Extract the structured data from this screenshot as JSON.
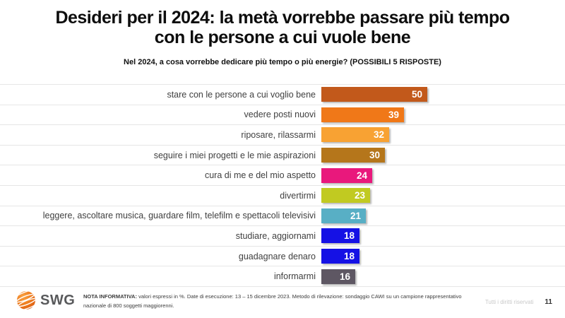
{
  "header": {
    "title_line1": "Desideri per il 2024: la metà vorrebbe passare più tempo",
    "title_line2": "con le persone a cui vuole bene",
    "subtitle": "Nel 2024, a cosa vorrebbe dedicare più tempo o più energie? (POSSIBILI 5 RISPOSTE)"
  },
  "chart_data": {
    "type": "bar",
    "orientation": "horizontal",
    "title": "Nel 2024, a cosa vorrebbe dedicare più tempo o più energie? (POSSIBILI 5 RISPOSTE)",
    "unit": "%",
    "xlim": [
      0,
      50
    ],
    "grid": "row-separator-lines",
    "value_labels": "inside-bar-end",
    "categories": [
      "stare con le persone a cui voglio bene",
      "vedere posti nuovi",
      "riposare, rilassarmi",
      "seguire i miei progetti e le mie aspirazioni",
      "cura di me e del mio aspetto",
      "divertirmi",
      "leggere, ascoltare musica, guardare film, telefilm e spettacoli televisivi",
      "studiare, aggiornami",
      "guadagnare denaro",
      "informarmi"
    ],
    "values": [
      50,
      39,
      32,
      30,
      24,
      23,
      21,
      18,
      18,
      16
    ],
    "bar_colors": [
      "#C2591B",
      "#F07818",
      "#F8A233",
      "#B5761B",
      "#E9187C",
      "#C1CA21",
      "#58AFC5",
      "#1511E5",
      "#1511E5",
      "#5E5763"
    ]
  },
  "footer": {
    "logo_text": "SWG",
    "note_label": "NOTA INFORMATIVA:",
    "note_text": "valori espressi in %. Date di esecuzione: 13 – 15 dicembre 2023. Metodo di rilevazione: sondaggio CAWI su un campione rappresentativo nazionale di 800 soggetti maggiorenni.",
    "rights_text": "Tutti i diritti riservati",
    "page_number": "11"
  },
  "colors": {
    "logo_orange": "#EE7C1E",
    "divider": "#E6E6E6",
    "category_label_text": "#404040",
    "value_label_text": "#FFFFFF"
  }
}
